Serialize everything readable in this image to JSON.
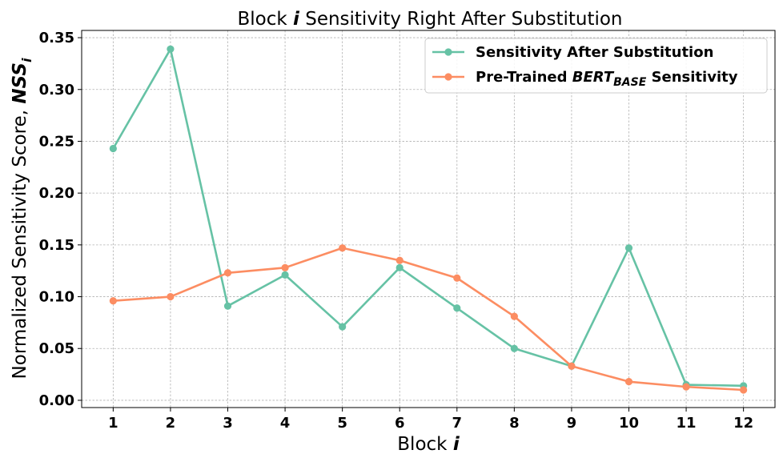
{
  "chart_data": {
    "type": "line",
    "title": {
      "pre": "Block ",
      "em": "i",
      "post": " Sensitivity Right After Substitution"
    },
    "xlabel": {
      "pre": "Block ",
      "em": "i"
    },
    "ylabel": {
      "pre": "Normalized Sensitivity Score, ",
      "em": "NSS",
      "sub": "i"
    },
    "x": [
      1,
      2,
      3,
      4,
      5,
      6,
      7,
      8,
      9,
      10,
      11,
      12
    ],
    "ylim": [
      -0.007,
      0.357
    ],
    "yticks": [
      "0.00",
      "0.05",
      "0.10",
      "0.15",
      "0.20",
      "0.25",
      "0.30",
      "0.35"
    ],
    "grid": true,
    "legend_position": "top-right",
    "series": [
      {
        "legend": {
          "pre": "Sensitivity After Substitution",
          "em": "",
          "sub": "",
          "post": ""
        },
        "color": "#66c2a5",
        "values": [
          0.243,
          0.339,
          0.091,
          0.121,
          0.071,
          0.128,
          0.089,
          0.05,
          0.033,
          0.147,
          0.015,
          0.014
        ]
      },
      {
        "legend": {
          "pre": "Pre-Trained ",
          "em": "BERT",
          "sub": "BASE",
          "post": " Sensitivity"
        },
        "color": "#fc8d62",
        "values": [
          0.096,
          0.1,
          0.123,
          0.128,
          0.147,
          0.135,
          0.118,
          0.081,
          0.033,
          0.018,
          0.013,
          0.01
        ]
      }
    ]
  }
}
